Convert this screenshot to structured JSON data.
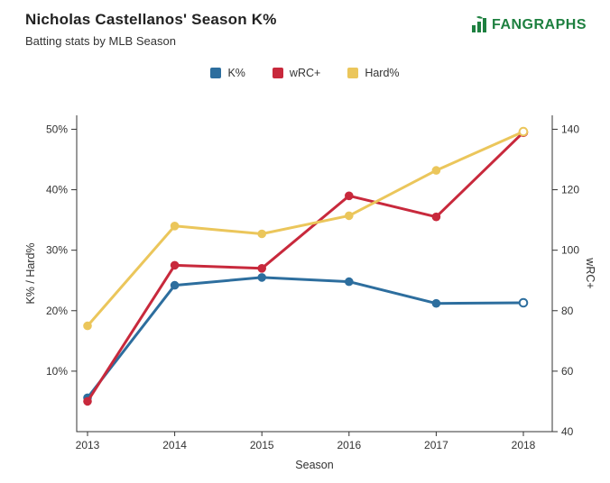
{
  "header": {
    "title": "Nicholas Castellanos' Season K%",
    "subtitle": "Batting stats by MLB Season",
    "logo_text": "FANGRAPHS",
    "logo_color": "#1e8040"
  },
  "chart_data": {
    "type": "line",
    "title": "Nicholas Castellanos' Season K%",
    "subtitle": "Batting stats by MLB Season",
    "x": [
      "2013",
      "2014",
      "2015",
      "2016",
      "2017",
      "2018"
    ],
    "series": [
      {
        "name": "K%",
        "axis": "left",
        "color": "#2D6E9E",
        "values": [
          5.6,
          24.2,
          25.5,
          24.8,
          21.2,
          21.3
        ]
      },
      {
        "name": "wRC+",
        "axis": "right",
        "color": "#C8293C",
        "values": [
          50,
          95,
          94,
          118,
          111,
          139
        ]
      },
      {
        "name": "Hard%",
        "axis": "left",
        "color": "#EBC65B",
        "values": [
          17.5,
          34.0,
          32.7,
          35.7,
          43.2,
          49.6
        ]
      }
    ],
    "left_axis": {
      "label": "K% / Hard%",
      "ticks": [
        10,
        20,
        30,
        40,
        50
      ],
      "tick_suffix": "%",
      "domain": [
        0,
        52.3
      ]
    },
    "right_axis": {
      "label": "wRC+",
      "ticks": [
        40,
        60,
        80,
        100,
        120,
        140
      ],
      "tick_suffix": "",
      "domain": [
        40,
        144.6
      ]
    },
    "x_axis": {
      "label": "Season"
    },
    "legend_position": "top-center",
    "grid": false,
    "last_point_style": "hollow"
  }
}
